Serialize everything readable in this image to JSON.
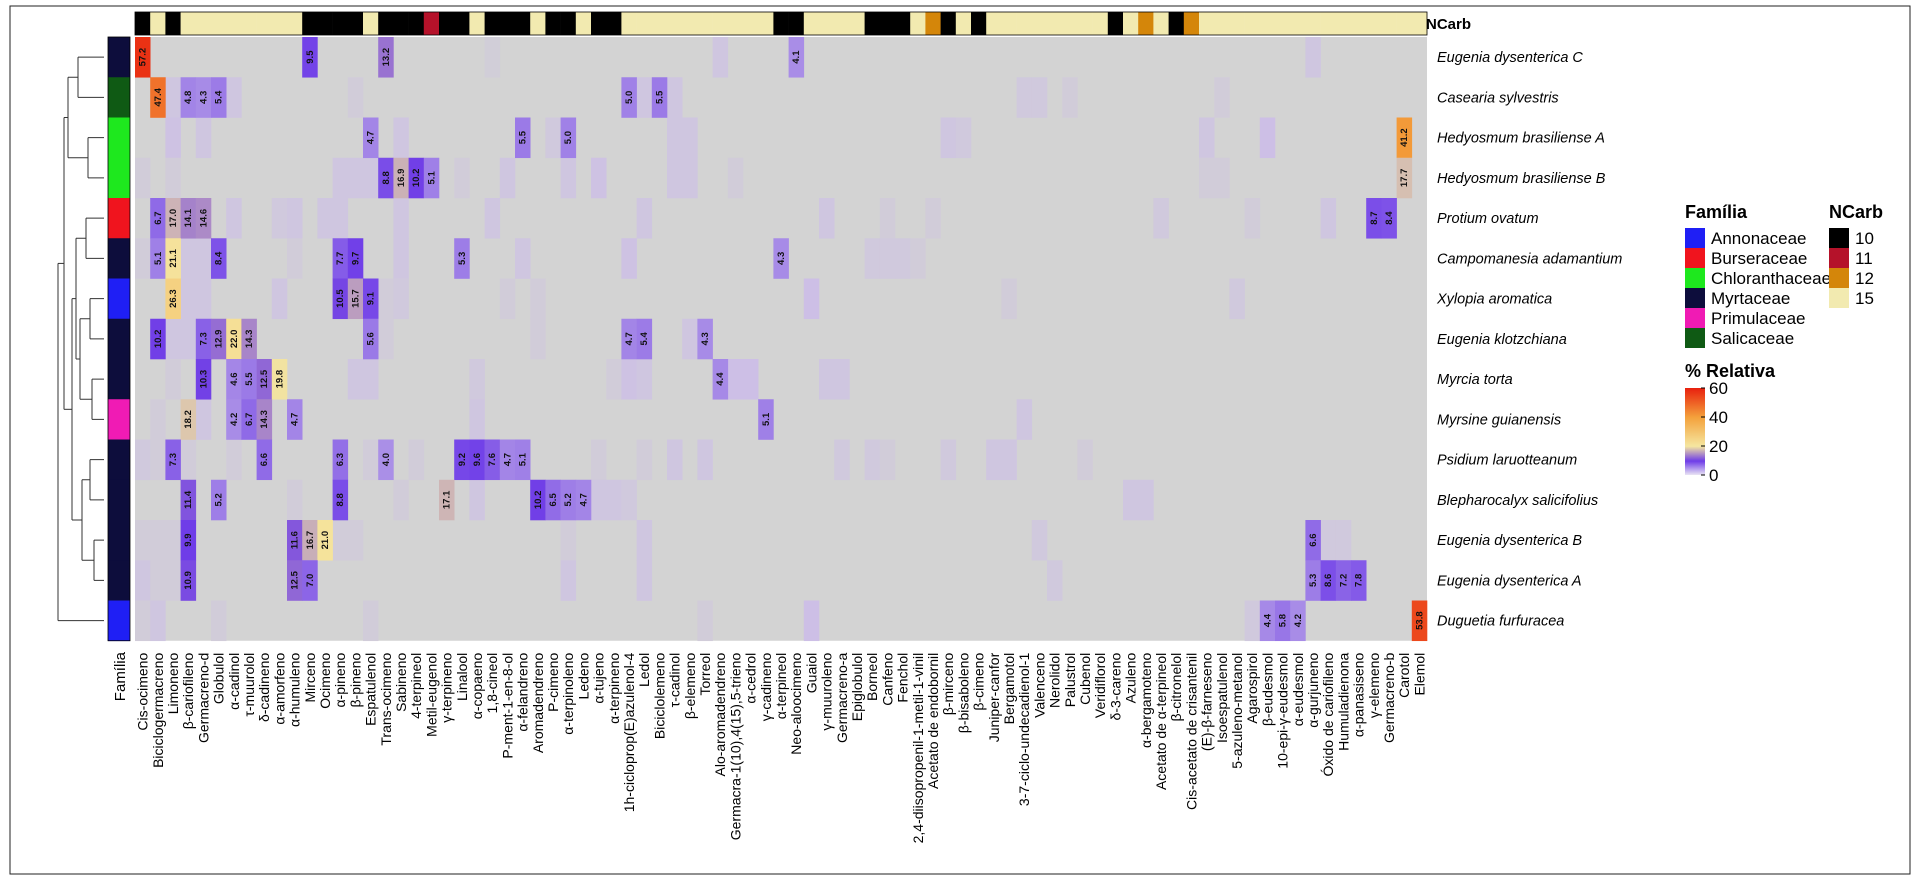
{
  "chart_data": {
    "type": "heatmap",
    "title": "",
    "xlabel": "",
    "ylabel": "",
    "annotation_label": "Família",
    "ncarb_label": "NCarb",
    "compounds": [
      "Cis-ocimeno",
      "Biciclogermacreno",
      "Limoneno",
      "β-cariofileno",
      "Germacreno-d",
      "Globulol",
      "α-cadinol",
      "τ-muurolol",
      "δ-cadineno",
      "α-amorfeno",
      "α-humuleno",
      "Mirceno",
      "Ocimeno",
      "α-pineno",
      "β-pineno",
      "Espatulenol",
      "Trans-ocimeno",
      "Sabineno",
      "4-terpineol",
      "Metil-eugenol",
      "γ-terpineno",
      "Linalool",
      "α-copaeno",
      "1,8-cineol",
      "P-ment-1-en-8-ol",
      "α-felandreno",
      "Aromadendreno",
      "P-cimeno",
      "α-terpinoleno",
      "Ledeno",
      "α-tujeno",
      "α-terpineno",
      "1h-cicloprop(E)azulenol-4",
      "Ledol",
      "Biciclolemeno",
      "τ-cadinol",
      "β-elemeno",
      "Torreol",
      "Alo-aromadendreno",
      "Germacra-1(10),4(15),5-trieno",
      "α-cedrol",
      "γ-cadineno",
      "α-terpineol",
      "Neo-aloocimeno",
      "Guaiol",
      "γ-muuroleno",
      "Germacreno-a",
      "Epiglobulol",
      "Borneol",
      "Canfeno",
      "Fenchol",
      "2,4-diisopropenil-1-metil-1-vinil",
      "Acetato de endobornil",
      "β-mirceno",
      "β-bisaboleno",
      "β-cimeno",
      "Juniper-canfor",
      "Bergamotol",
      "3-7-ciclo-undecadienol-1",
      "Valenceno",
      "Nerolidol",
      "Palustrol",
      "Cubenol",
      "Veridiflorol",
      "δ-3-careno",
      "Azuleno",
      "α-bergamoteno",
      "Acetato de α-terpineol",
      "β-citronelol",
      "Cis-acetato de crisantenil",
      "(E)-β-farneseno",
      "Isoespatulenol",
      "5-azuleno-metanol",
      "Agarospirol",
      "β-eudesmol",
      "10-epi-γ-eudesmol",
      "α-eudesmol",
      "α-gurjuneno",
      "Óxido de cariofileno",
      "Humuladienona",
      "α-panasiseno",
      "γ-elemeno",
      "Germacreno-b",
      "Carotol",
      "Elemol"
    ],
    "ncarb": [
      10,
      15,
      10,
      15,
      15,
      15,
      15,
      15,
      15,
      15,
      15,
      10,
      10,
      10,
      10,
      15,
      10,
      10,
      10,
      11,
      10,
      10,
      15,
      10,
      10,
      10,
      15,
      10,
      10,
      15,
      10,
      10,
      15,
      15,
      15,
      15,
      15,
      15,
      15,
      15,
      15,
      15,
      10,
      10,
      15,
      15,
      15,
      15,
      10,
      10,
      10,
      15,
      12,
      10,
      15,
      10,
      15,
      15,
      15,
      15,
      15,
      15,
      15,
      15,
      10,
      15,
      12,
      15,
      10,
      12,
      15,
      15,
      15,
      15,
      15,
      15,
      15,
      15,
      15,
      15,
      15,
      15,
      15,
      15,
      15
    ],
    "samples": [
      "Eugenia dysenterica C",
      "Casearia sylvestris",
      "Hedyosmum brasiliense A",
      "Hedyosmum brasiliense B",
      "Protium ovatum",
      "Campomanesia adamantium",
      "Xylopia aromatica",
      "Eugenia klotzchiana",
      "Myrcia torta",
      "Myrsine guianensis",
      "Psidium laruotteanum",
      "Blepharocalyx salicifolius",
      "Eugenia dysenterica B",
      "Eugenia dysenterica A",
      "Duguetia furfuracea"
    ],
    "familia": [
      "Myrtaceae",
      "Salicaceae",
      "Chloranthaceae",
      "Chloranthaceae",
      "Burseraceae",
      "Myrtaceae",
      "Annonaceae",
      "Myrtaceae",
      "Myrtaceae",
      "Primulaceae",
      "Myrtaceae",
      "Myrtaceae",
      "Myrtaceae",
      "Myrtaceae",
      "Annonaceae"
    ],
    "cells": [
      [
        0,
        0,
        57.2
      ],
      [
        0,
        11,
        9.5
      ],
      [
        0,
        16,
        13.2
      ],
      [
        0,
        43,
        4.1
      ],
      [
        1,
        1,
        47.4
      ],
      [
        1,
        3,
        4.8
      ],
      [
        1,
        4,
        4.3
      ],
      [
        1,
        5,
        5.4
      ],
      [
        1,
        32,
        5.0
      ],
      [
        1,
        34,
        5.5
      ],
      [
        2,
        15,
        4.7
      ],
      [
        2,
        25,
        5.5
      ],
      [
        2,
        28,
        5.0
      ],
      [
        2,
        83,
        41.2
      ],
      [
        3,
        16,
        8.8
      ],
      [
        3,
        17,
        16.9
      ],
      [
        3,
        18,
        10.2
      ],
      [
        3,
        19,
        5.1
      ],
      [
        3,
        83,
        17.7
      ],
      [
        4,
        1,
        6.7
      ],
      [
        4,
        2,
        17.0
      ],
      [
        4,
        3,
        14.1
      ],
      [
        4,
        4,
        14.6
      ],
      [
        4,
        81,
        8.7
      ],
      [
        4,
        82,
        8.4
      ],
      [
        5,
        1,
        5.1
      ],
      [
        5,
        2,
        21.1
      ],
      [
        5,
        5,
        8.4
      ],
      [
        5,
        13,
        7.7
      ],
      [
        5,
        14,
        9.7
      ],
      [
        5,
        21,
        5.3
      ],
      [
        5,
        42,
        4.3
      ],
      [
        6,
        2,
        26.3
      ],
      [
        6,
        13,
        10.5
      ],
      [
        6,
        14,
        15.7
      ],
      [
        6,
        15,
        9.1
      ],
      [
        7,
        1,
        10.2
      ],
      [
        7,
        4,
        7.3
      ],
      [
        7,
        5,
        12.9
      ],
      [
        7,
        6,
        22.0
      ],
      [
        7,
        7,
        14.3
      ],
      [
        7,
        15,
        5.6
      ],
      [
        7,
        32,
        4.7
      ],
      [
        7,
        33,
        5.4
      ],
      [
        7,
        37,
        4.3
      ],
      [
        8,
        4,
        10.3
      ],
      [
        8,
        6,
        4.6
      ],
      [
        8,
        7,
        5.5
      ],
      [
        8,
        8,
        12.5
      ],
      [
        8,
        9,
        19.8
      ],
      [
        8,
        38,
        4.4
      ],
      [
        9,
        3,
        18.2
      ],
      [
        9,
        6,
        4.2
      ],
      [
        9,
        7,
        6.7
      ],
      [
        9,
        8,
        14.3
      ],
      [
        9,
        10,
        4.7
      ],
      [
        9,
        41,
        5.1
      ],
      [
        10,
        2,
        7.3
      ],
      [
        10,
        8,
        6.6
      ],
      [
        10,
        13,
        6.3
      ],
      [
        10,
        16,
        4.0
      ],
      [
        10,
        21,
        9.2
      ],
      [
        10,
        22,
        9.6
      ],
      [
        10,
        23,
        7.6
      ],
      [
        10,
        24,
        4.7
      ],
      [
        10,
        25,
        5.1
      ],
      [
        11,
        3,
        11.4
      ],
      [
        11,
        5,
        5.2
      ],
      [
        11,
        13,
        8.8
      ],
      [
        11,
        20,
        17.1
      ],
      [
        11,
        26,
        10.2
      ],
      [
        11,
        27,
        6.5
      ],
      [
        11,
        28,
        5.2
      ],
      [
        11,
        29,
        4.7
      ],
      [
        12,
        3,
        9.9
      ],
      [
        12,
        10,
        11.6
      ],
      [
        12,
        11,
        16.7
      ],
      [
        12,
        12,
        21.0
      ],
      [
        12,
        77,
        6.6
      ],
      [
        13,
        3,
        10.9
      ],
      [
        13,
        10,
        12.5
      ],
      [
        13,
        11,
        7.0
      ],
      [
        13,
        77,
        5.3
      ],
      [
        13,
        78,
        8.6
      ],
      [
        13,
        79,
        7.2
      ],
      [
        13,
        80,
        7.8
      ],
      [
        14,
        74,
        4.4
      ],
      [
        14,
        75,
        5.8
      ],
      [
        14,
        76,
        4.2
      ],
      [
        14,
        84,
        53.8
      ]
    ],
    "faint_cells": [
      [
        0,
        38,
        2
      ],
      [
        0,
        77,
        2
      ],
      [
        0,
        23,
        0.8
      ],
      [
        1,
        2,
        2
      ],
      [
        1,
        6,
        2
      ],
      [
        1,
        14,
        1
      ],
      [
        1,
        33,
        2
      ],
      [
        1,
        35,
        2
      ],
      [
        1,
        58,
        1.5
      ],
      [
        1,
        59,
        1.5
      ],
      [
        1,
        61,
        1
      ],
      [
        1,
        71,
        1
      ],
      [
        2,
        2,
        2.5
      ],
      [
        2,
        4,
        2
      ],
      [
        2,
        17,
        2
      ],
      [
        2,
        27,
        1.5
      ],
      [
        2,
        35,
        2
      ],
      [
        2,
        36,
        2
      ],
      [
        2,
        53,
        2
      ],
      [
        2,
        54,
        1.5
      ],
      [
        2,
        70,
        2
      ],
      [
        2,
        74,
        3
      ],
      [
        3,
        0,
        1
      ],
      [
        3,
        2,
        1
      ],
      [
        3,
        13,
        2
      ],
      [
        3,
        14,
        2
      ],
      [
        3,
        15,
        2
      ],
      [
        3,
        21,
        1
      ],
      [
        3,
        24,
        2
      ],
      [
        3,
        28,
        2
      ],
      [
        3,
        30,
        2.5
      ],
      [
        3,
        35,
        2
      ],
      [
        3,
        36,
        2
      ],
      [
        3,
        39,
        1
      ],
      [
        3,
        70,
        1
      ],
      [
        3,
        71,
        1
      ],
      [
        4,
        6,
        2
      ],
      [
        4,
        9,
        1.5
      ],
      [
        4,
        10,
        2
      ],
      [
        4,
        12,
        2
      ],
      [
        4,
        13,
        2
      ],
      [
        4,
        17,
        2
      ],
      [
        4,
        23,
        2
      ],
      [
        4,
        33,
        2
      ],
      [
        4,
        45,
        2
      ],
      [
        4,
        49,
        1
      ],
      [
        4,
        52,
        1
      ],
      [
        4,
        67,
        1.5
      ],
      [
        4,
        73,
        1
      ],
      [
        4,
        78,
        2
      ],
      [
        5,
        0,
        1
      ],
      [
        5,
        3,
        2
      ],
      [
        5,
        4,
        2
      ],
      [
        5,
        10,
        1
      ],
      [
        5,
        17,
        2
      ],
      [
        5,
        25,
        2
      ],
      [
        5,
        32,
        2.5
      ],
      [
        5,
        48,
        1.5
      ],
      [
        5,
        49,
        1.5
      ],
      [
        5,
        50,
        1.5
      ],
      [
        5,
        51,
        1
      ],
      [
        6,
        3,
        2
      ],
      [
        6,
        4,
        2
      ],
      [
        6,
        9,
        2
      ],
      [
        6,
        16,
        1
      ],
      [
        6,
        17,
        1.5
      ],
      [
        6,
        24,
        1
      ],
      [
        6,
        26,
        1
      ],
      [
        6,
        44,
        3
      ],
      [
        6,
        57,
        1
      ],
      [
        6,
        72,
        1.5
      ],
      [
        7,
        2,
        2
      ],
      [
        7,
        3,
        2
      ],
      [
        7,
        16,
        1
      ],
      [
        7,
        26,
        1
      ],
      [
        7,
        36,
        2
      ],
      [
        8,
        2,
        1
      ],
      [
        8,
        14,
        2
      ],
      [
        8,
        15,
        2
      ],
      [
        8,
        22,
        1.5
      ],
      [
        8,
        31,
        1
      ],
      [
        8,
        32,
        2.5
      ],
      [
        8,
        33,
        2
      ],
      [
        8,
        39,
        3
      ],
      [
        8,
        40,
        3
      ],
      [
        8,
        45,
        2
      ],
      [
        8,
        46,
        2
      ],
      [
        9,
        1,
        1
      ],
      [
        9,
        4,
        2
      ],
      [
        9,
        22,
        2
      ],
      [
        9,
        58,
        2
      ],
      [
        10,
        0,
        1.5
      ],
      [
        10,
        1,
        1
      ],
      [
        10,
        3,
        1
      ],
      [
        10,
        6,
        1
      ],
      [
        10,
        15,
        1
      ],
      [
        10,
        18,
        1
      ],
      [
        10,
        30,
        1
      ],
      [
        10,
        33,
        1
      ],
      [
        10,
        35,
        2
      ],
      [
        10,
        37,
        2
      ],
      [
        10,
        46,
        1.5
      ],
      [
        10,
        48,
        1.5
      ],
      [
        10,
        49,
        1
      ],
      [
        10,
        53,
        1.5
      ],
      [
        10,
        56,
        2
      ],
      [
        10,
        57,
        2
      ],
      [
        10,
        62,
        1
      ],
      [
        11,
        10,
        1
      ],
      [
        11,
        17,
        1
      ],
      [
        11,
        22,
        2
      ],
      [
        11,
        30,
        2
      ],
      [
        11,
        31,
        2
      ],
      [
        11,
        32,
        1.5
      ],
      [
        11,
        65,
        2
      ],
      [
        11,
        66,
        2
      ],
      [
        12,
        0,
        1
      ],
      [
        12,
        1,
        1
      ],
      [
        12,
        2,
        1
      ],
      [
        12,
        13,
        1
      ],
      [
        12,
        14,
        1
      ],
      [
        12,
        28,
        1
      ],
      [
        12,
        33,
        2
      ],
      [
        12,
        59,
        1.5
      ],
      [
        12,
        78,
        1.5
      ],
      [
        12,
        79,
        1.5
      ],
      [
        13,
        0,
        2
      ],
      [
        13,
        1,
        1
      ],
      [
        13,
        2,
        1
      ],
      [
        13,
        28,
        2
      ],
      [
        13,
        33,
        2
      ],
      [
        13,
        60,
        1.5
      ],
      [
        14,
        0,
        1
      ],
      [
        14,
        1,
        2
      ],
      [
        14,
        5,
        1
      ],
      [
        14,
        15,
        1
      ],
      [
        14,
        37,
        1
      ],
      [
        14,
        44,
        3
      ],
      [
        14,
        73,
        1.5
      ]
    ],
    "legend_familia": {
      "title": "Família",
      "items": [
        {
          "name": "Annonaceae",
          "color": "#1f1ff5"
        },
        {
          "name": "Burseraceae",
          "color": "#f0141e"
        },
        {
          "name": "Chloranthaceae",
          "color": "#1ee81e"
        },
        {
          "name": "Myrtaceae",
          "color": "#0d0d3c"
        },
        {
          "name": "Primulaceae",
          "color": "#f01bb4"
        },
        {
          "name": "Salicaceae",
          "color": "#0f5a14"
        }
      ]
    },
    "legend_ncarb": {
      "title": "NCarb",
      "items": [
        {
          "name": "10",
          "color": "#000000"
        },
        {
          "name": "11",
          "color": "#b5122a"
        },
        {
          "name": "12",
          "color": "#d4860a"
        },
        {
          "name": "15",
          "color": "#f2eab0"
        }
      ]
    },
    "legend_scale": {
      "title": "% Relativa",
      "ticks": [
        0,
        20,
        40,
        60
      ],
      "range": [
        0,
        60
      ]
    },
    "colors": {
      "background_cell": "#d3d3d3",
      "low": "#cdbfe6",
      "mid": "#6e3ce8",
      "high20": "#f5e6a0",
      "high40": "#f4a23c",
      "high60": "#e8200e"
    }
  }
}
